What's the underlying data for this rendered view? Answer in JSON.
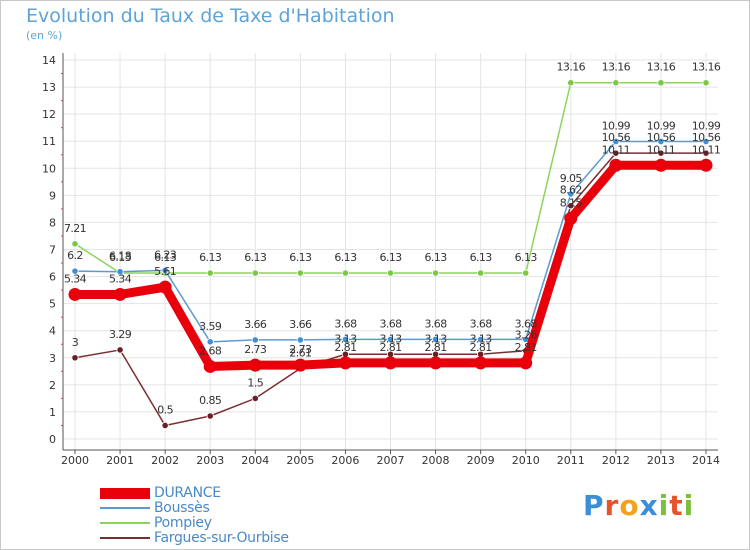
{
  "title": "Evolution du Taux de Taxe d'Habitation",
  "unit_label": "(en %)",
  "logo": {
    "letters": [
      "P",
      "r",
      "o",
      "x",
      "i",
      "t",
      "i"
    ],
    "colors": [
      "#3a8fd6",
      "#e8532b",
      "#f2a31b",
      "#3a8fd6",
      "#7bbf3a",
      "#e8532b",
      "#7bbf3a"
    ]
  },
  "chart_data": {
    "type": "line",
    "title": "Evolution du Taux de Taxe d'Habitation",
    "ylabel": "(en %)",
    "xlabel": "",
    "x": [
      "2000",
      "2001",
      "2002",
      "2003",
      "2004",
      "2005",
      "2006",
      "2007",
      "2008",
      "2009",
      "2010",
      "2011",
      "2012",
      "2013",
      "2014"
    ],
    "ylim": [
      0,
      14
    ],
    "yticks": [
      "0",
      "1",
      "2",
      "3",
      "4",
      "5",
      "6",
      "7",
      "8",
      "9",
      "10",
      "11",
      "12",
      "13",
      "14"
    ],
    "grid": true,
    "legend_position": "bottom-left",
    "series": [
      {
        "name": "DURANCE",
        "color": "#e8000b",
        "values": [
          5.34,
          5.34,
          5.61,
          2.68,
          2.73,
          2.73,
          2.81,
          2.81,
          2.81,
          2.81,
          2.81,
          8.15,
          10.11,
          10.11,
          10.11
        ],
        "labels": [
          "5.34",
          "5.34",
          "5.61",
          "2.68",
          "2.73",
          "2.73",
          "2.81",
          "2.81",
          "2.81",
          "2.81",
          "2.81",
          "8.15",
          "10.11",
          "10.11",
          "10.11"
        ]
      },
      {
        "name": "Boussès",
        "color": "#5d9ad0",
        "values": [
          6.2,
          6.18,
          6.23,
          3.59,
          3.66,
          3.66,
          3.68,
          3.68,
          3.68,
          3.68,
          3.68,
          9.05,
          10.99,
          10.99,
          10.99
        ],
        "labels": [
          "6.2",
          "6.18",
          "6.23",
          "3.59",
          "3.66",
          "3.66",
          "3.68",
          "3.68",
          "3.68",
          "3.68",
          "3.68",
          "9.05",
          "10.99",
          "10.99",
          "10.99"
        ]
      },
      {
        "name": "Pompiey",
        "color": "#8dd35f",
        "values": [
          7.21,
          6.13,
          6.13,
          6.13,
          6.13,
          6.13,
          6.13,
          6.13,
          6.13,
          6.13,
          6.13,
          13.16,
          13.16,
          13.16,
          13.16
        ],
        "labels": [
          "7.21",
          "6.13",
          "6.13",
          "6.13",
          "6.13",
          "6.13",
          "6.13",
          "6.13",
          "6.13",
          "6.13",
          "6.13",
          "13.16",
          "13.16",
          "13.16",
          "13.16"
        ]
      },
      {
        "name": "Fargues-sur-Ourbise",
        "color": "#7a2e33",
        "values": [
          3,
          3.29,
          0.5,
          0.85,
          1.5,
          2.61,
          3.13,
          3.13,
          3.13,
          3.13,
          3.26,
          8.62,
          10.56,
          10.56,
          10.56
        ],
        "labels": [
          "3",
          "3.29",
          "0.5",
          "0.85",
          "1.5",
          "2.61",
          "3.13",
          "3.13",
          "3.13",
          "3.13",
          "3.26",
          "8.62",
          "10.56",
          "10.56",
          "10.56"
        ]
      }
    ]
  }
}
